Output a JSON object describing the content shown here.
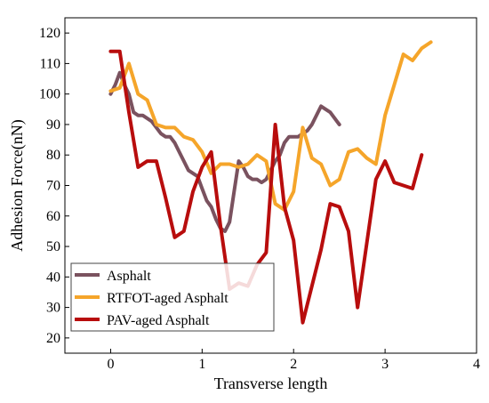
{
  "chart_data": {
    "type": "line",
    "title": "",
    "xlabel": "Transverse length",
    "ylabel": "Adhesion Force(nN)",
    "xlim": [
      -0.5,
      4
    ],
    "ylim": [
      15,
      125
    ],
    "xticks": [
      0,
      1,
      2,
      3,
      4
    ],
    "yticks": [
      20,
      30,
      40,
      50,
      60,
      70,
      80,
      90,
      100,
      110,
      120
    ],
    "grid": false,
    "legend_position": "bottom-left",
    "series": [
      {
        "name": "Asphalt",
        "color": "#7a525f",
        "x": [
          0,
          0.05,
          0.1,
          0.15,
          0.2,
          0.25,
          0.3,
          0.35,
          0.4,
          0.45,
          0.5,
          0.55,
          0.6,
          0.65,
          0.7,
          0.75,
          0.8,
          0.85,
          0.9,
          0.95,
          1.0,
          1.05,
          1.1,
          1.15,
          1.2,
          1.25,
          1.3,
          1.35,
          1.4,
          1.45,
          1.5,
          1.55,
          1.6,
          1.65,
          1.7,
          1.75,
          1.8,
          1.85,
          1.9,
          1.95,
          2.0,
          2.05,
          2.1,
          2.15,
          2.2,
          2.25,
          2.3,
          2.35,
          2.4,
          2.45,
          2.5
        ],
        "y": [
          100,
          103,
          107,
          103,
          100,
          94,
          93,
          93,
          92,
          91,
          89,
          87,
          86,
          86,
          84,
          81,
          78,
          75,
          74,
          73,
          69,
          65,
          63,
          59,
          56,
          55,
          58,
          68,
          78,
          76,
          73,
          72,
          72,
          71,
          72,
          75,
          78,
          80,
          84,
          86,
          86,
          86,
          87,
          88,
          90,
          93,
          96,
          95,
          94,
          92,
          90
        ]
      },
      {
        "name": "RTFOT-aged Asphalt",
        "color": "#f5a52a",
        "x": [
          0,
          0.1,
          0.2,
          0.3,
          0.4,
          0.5,
          0.6,
          0.7,
          0.8,
          0.9,
          1.0,
          1.1,
          1.2,
          1.3,
          1.4,
          1.5,
          1.6,
          1.7,
          1.8,
          1.9,
          2.0,
          2.1,
          2.2,
          2.3,
          2.4,
          2.5,
          2.6,
          2.7,
          2.8,
          2.9,
          3.0,
          3.1,
          3.2,
          3.3,
          3.4,
          3.5
        ],
        "y": [
          101,
          102,
          110,
          100,
          98,
          90,
          89,
          89,
          86,
          85,
          81,
          74,
          77,
          77,
          76,
          77,
          80,
          78,
          64,
          62,
          68,
          89,
          79,
          77,
          70,
          72,
          81,
          82,
          79,
          77,
          93,
          103,
          113,
          111,
          115,
          117
        ]
      },
      {
        "name": "PAV-aged Asphalt",
        "color": "#b80d0d",
        "x": [
          0,
          0.1,
          0.2,
          0.3,
          0.4,
          0.5,
          0.6,
          0.7,
          0.8,
          0.9,
          1.0,
          1.1,
          1.2,
          1.3,
          1.4,
          1.5,
          1.6,
          1.7,
          1.8,
          1.9,
          2.0,
          2.1,
          2.2,
          2.3,
          2.4,
          2.5,
          2.6,
          2.7,
          2.8,
          2.9,
          3.0,
          3.1,
          3.2,
          3.3,
          3.4
        ],
        "y": [
          114,
          114,
          94,
          76,
          78,
          78,
          66,
          53,
          55,
          68,
          76,
          81,
          57,
          36,
          38,
          37,
          44,
          48,
          90,
          63,
          52,
          25,
          37,
          49,
          64,
          63,
          55,
          30,
          51,
          72,
          78,
          71,
          70,
          69,
          80
        ]
      }
    ]
  }
}
